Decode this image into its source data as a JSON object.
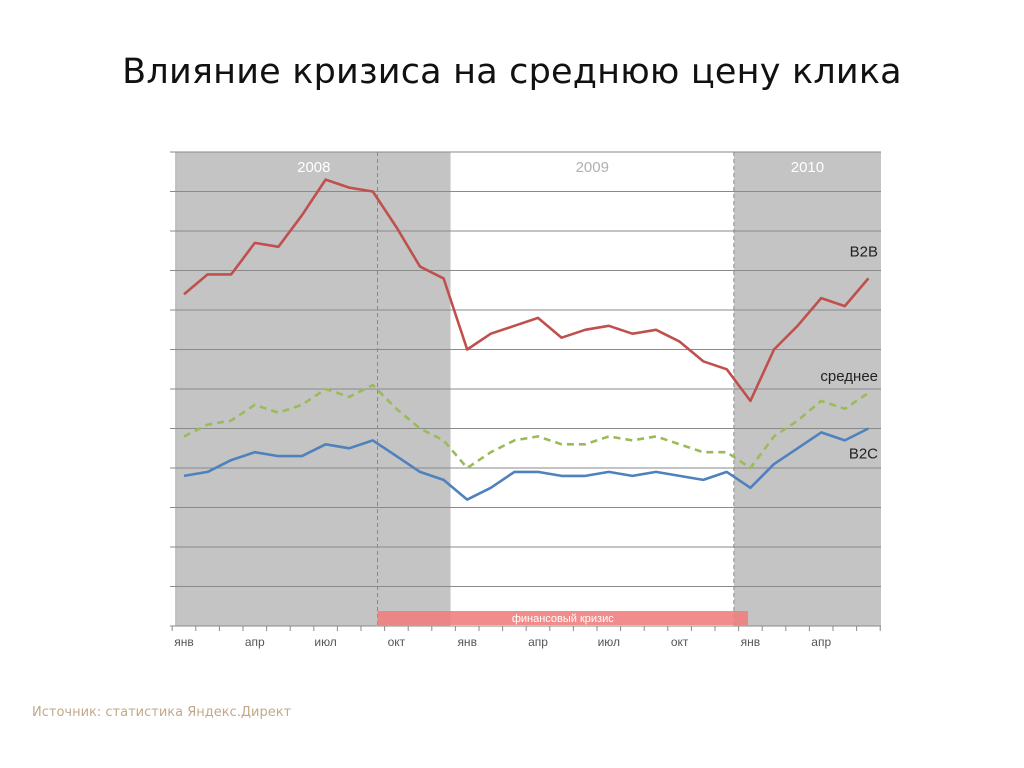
{
  "slide": {
    "title": "Влияние кризиса на среднюю цену клика",
    "source": "Источник: статистика Яндекс.Директ"
  },
  "chart_data": {
    "type": "line",
    "title": "",
    "xlabel": "",
    "ylabel": "",
    "grid": true,
    "y_tick_labels_shown": false,
    "ylim": [
      0,
      12
    ],
    "x": [
      "янв 2008",
      "фев 2008",
      "мар 2008",
      "апр 2008",
      "май 2008",
      "июн 2008",
      "июл 2008",
      "авг 2008",
      "сен 2008",
      "окт 2008",
      "ноя 2008",
      "дек 2008",
      "янв 2009",
      "фев 2009",
      "мар 2009",
      "апр 2009",
      "май 2009",
      "июн 2009",
      "июл 2009",
      "авг 2009",
      "сен 2009",
      "окт 2009",
      "ноя 2009",
      "дек 2009",
      "янв 2010",
      "фев 2010",
      "мар 2010",
      "апр 2010",
      "май 2010",
      "июн 2010"
    ],
    "x_tick_labels": [
      {
        "index": 0,
        "text": "янв"
      },
      {
        "index": 3,
        "text": "апр"
      },
      {
        "index": 6,
        "text": "июл"
      },
      {
        "index": 9,
        "text": "окт"
      },
      {
        "index": 12,
        "text": "янв"
      },
      {
        "index": 15,
        "text": "апр"
      },
      {
        "index": 18,
        "text": "июл"
      },
      {
        "index": 21,
        "text": "окт"
      },
      {
        "index": 24,
        "text": "янв"
      },
      {
        "index": 27,
        "text": "апр"
      }
    ],
    "series": [
      {
        "name": "B2B",
        "color": "#c0504d",
        "dash": "solid",
        "values": [
          8.4,
          8.9,
          8.9,
          9.7,
          9.6,
          10.4,
          11.3,
          11.1,
          11.0,
          10.1,
          9.1,
          8.8,
          7.0,
          7.4,
          7.6,
          7.8,
          7.3,
          7.5,
          7.6,
          7.4,
          7.5,
          7.2,
          6.7,
          6.5,
          5.7,
          7.0,
          7.6,
          8.3,
          8.1,
          8.8
        ]
      },
      {
        "name": "среднее",
        "color": "#9bbb59",
        "dash": "dashed",
        "values": [
          4.8,
          5.1,
          5.2,
          5.6,
          5.4,
          5.6,
          6.0,
          5.8,
          6.1,
          5.5,
          5.0,
          4.7,
          4.0,
          4.4,
          4.7,
          4.8,
          4.6,
          4.6,
          4.8,
          4.7,
          4.8,
          4.6,
          4.4,
          4.4,
          4.0,
          4.8,
          5.2,
          5.7,
          5.5,
          5.9
        ]
      },
      {
        "name": "B2C",
        "color": "#4f81bd",
        "dash": "solid",
        "values": [
          3.8,
          3.9,
          4.2,
          4.4,
          4.3,
          4.3,
          4.6,
          4.5,
          4.7,
          4.3,
          3.9,
          3.7,
          3.2,
          3.5,
          3.9,
          3.9,
          3.8,
          3.8,
          3.9,
          3.8,
          3.9,
          3.8,
          3.7,
          3.9,
          3.5,
          4.1,
          4.5,
          4.9,
          4.7,
          5.0
        ]
      }
    ],
    "periods": [
      {
        "label": "2008",
        "shade": "#c4c4c4",
        "start": -0.3,
        "end": 11.3
      },
      {
        "label": "2009",
        "shade": "#ffffff",
        "start": 11.3,
        "end": 23.3
      },
      {
        "label": "2010",
        "shade": "#c4c4c4",
        "start": 23.3,
        "end": 29.6
      }
    ],
    "crisis": {
      "label": "финансовый кризис",
      "start": 8.2,
      "end": 23.9,
      "color": "#f08080"
    },
    "vertical_dashed_lines_at": [
      8.2,
      23.3
    ],
    "series_label_colors": {
      "B2B": "#222222",
      "среднее": "#222222",
      "B2C": "#222222"
    }
  }
}
